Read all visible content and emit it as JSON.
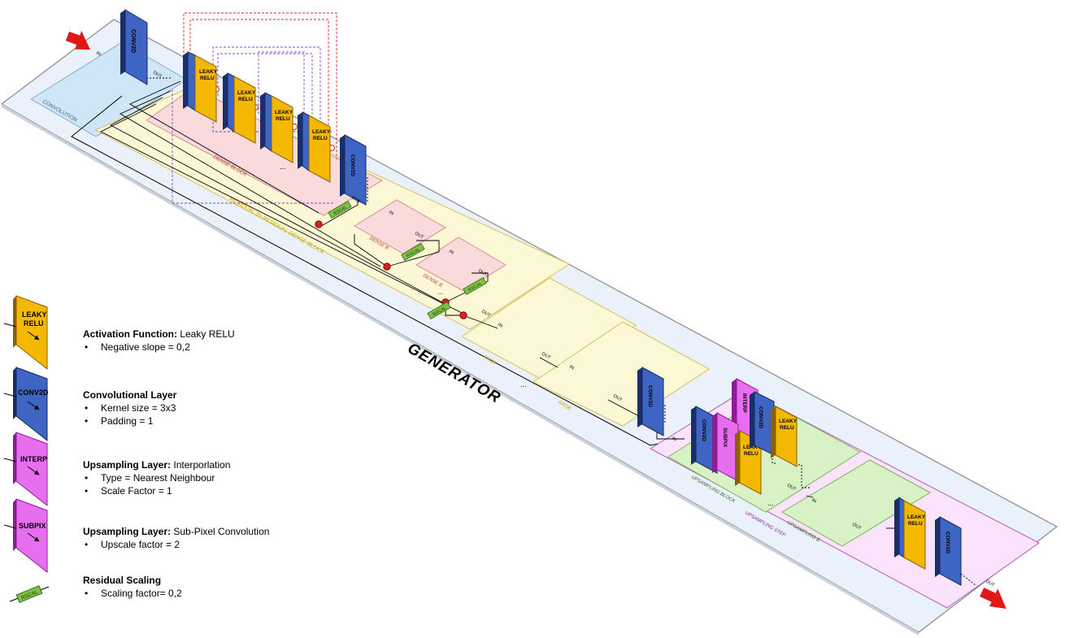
{
  "generator_title": "GENERATOR",
  "layers": {
    "conv": "CONV2D",
    "leaky_line1": "LEAKY",
    "leaky_line2": "RELU",
    "interp": "INTERP",
    "subpix": "SUBPIX",
    "rscal": "RSCAL"
  },
  "ports": {
    "in": "IN",
    "out": "OUT"
  },
  "ellipsis": "...",
  "blocks": {
    "convolution": "CONVOLUTION",
    "dense_block": "DENSE BLOCK",
    "rrdb_long": "RESIDUAL-IN-RESIDUAL DENSE BLOCK",
    "dense_b": "DENSE B",
    "rrdb": "RRDB",
    "upsampling_block": "UPSAMPLING BLOCK",
    "upsampling_b": "UPSAMPLING B",
    "upsampling_step": "UPSAMPLING STEP"
  },
  "colors": {
    "leaky": "#f5b800",
    "conv": "#3e64c4",
    "interp_subpix": "#e86ef0",
    "rscal": "#7dc242",
    "arrow": "#e01818",
    "platform": "#eaf1fb",
    "convolution_region": "#cfe6f7",
    "rrdb_region": "#fcf8d6",
    "dense_region": "#fadada",
    "upsampling_step_region": "#fbe3fb",
    "upsampling_block_region": "#d8f2c6"
  },
  "legend": [
    {
      "icon": "leaky-relu-layer-icon",
      "title": "Activation Function:",
      "subtitle": " Leaky RELU",
      "bullets": [
        "Negative slope = 0,2"
      ]
    },
    {
      "icon": "conv2d-layer-icon",
      "title": "Convolutional Layer",
      "subtitle": "",
      "bullets": [
        "Kernel size = 3x3",
        "Padding = 1"
      ]
    },
    {
      "icon": "interp-layer-icon",
      "title": "Upsampling Layer:",
      "subtitle": " Interporlation",
      "bullets": [
        "Type = Nearest Neighbour",
        "Scale Factor = 1"
      ]
    },
    {
      "icon": "subpix-layer-icon",
      "title": "Upsampling Layer:",
      "subtitle": " Sub-Pixel Convolution",
      "bullets": [
        "Upscale factor = 2"
      ]
    },
    {
      "icon": "rscal-icon",
      "title": "Residual Scaling",
      "subtitle": "",
      "bullets": [
        "Scaling factor= 0,2"
      ]
    }
  ]
}
